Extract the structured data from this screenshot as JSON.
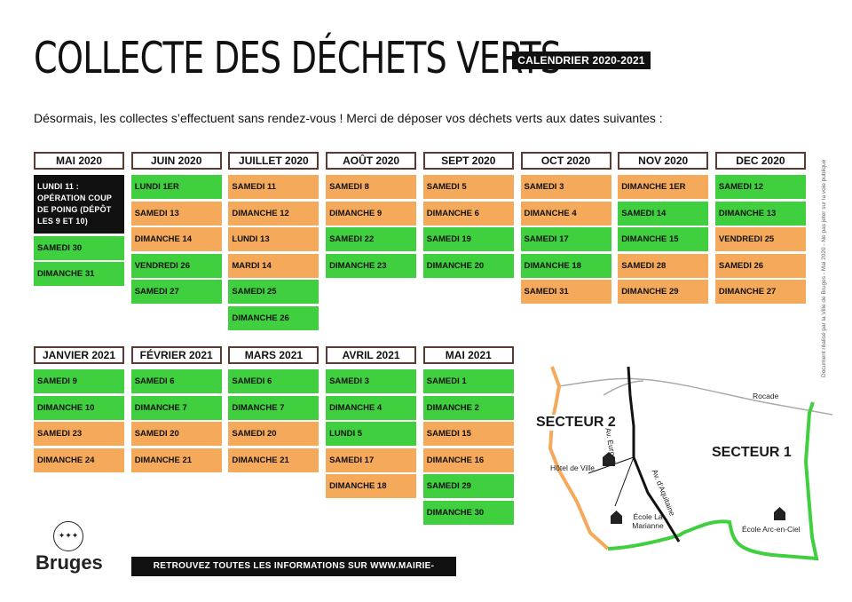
{
  "header": {
    "title": "COLLECTE DES DÉCHETS VERTS",
    "badge": "CALENDRIER 2020-2021",
    "intro": "Désormais, les collectes s’effectuent sans rendez-vous ! Merci de déposer vos déchets verts aux dates suivantes :"
  },
  "colors": {
    "green": "#3fcf3f",
    "orange": "#f5a95a",
    "black": "#111111",
    "border": "#5a3a32"
  },
  "months_2020": [
    {
      "name": "MAI 2020",
      "cells": [
        {
          "text": "LUNDI 11 : OPÉRATION COUP DE POING (DÉPÔT LES 9 ET 10)",
          "color": "black"
        },
        {
          "text": "SAMEDI 30",
          "color": "green"
        },
        {
          "text": "DIMANCHE 31",
          "color": "green"
        }
      ]
    },
    {
      "name": "JUIN 2020",
      "cells": [
        {
          "text": "LUNDI 1ER",
          "color": "green"
        },
        {
          "text": "SAMEDI 13",
          "color": "orange"
        },
        {
          "text": "DIMANCHE 14",
          "color": "orange"
        },
        {
          "text": "VENDREDI 26",
          "color": "green"
        },
        {
          "text": "SAMEDI 27",
          "color": "green"
        }
      ]
    },
    {
      "name": "JUILLET 2020",
      "cells": [
        {
          "text": "SAMEDI 11",
          "color": "orange"
        },
        {
          "text": "DIMANCHE 12",
          "color": "orange"
        },
        {
          "text": "LUNDI 13",
          "color": "orange"
        },
        {
          "text": "MARDI 14",
          "color": "orange"
        },
        {
          "text": "SAMEDI 25",
          "color": "green"
        },
        {
          "text": "DIMANCHE 26",
          "color": "green"
        }
      ]
    },
    {
      "name": "AOÛT 2020",
      "cells": [
        {
          "text": "SAMEDI 8",
          "color": "orange"
        },
        {
          "text": "DIMANCHE 9",
          "color": "orange"
        },
        {
          "text": "SAMEDI 22",
          "color": "green"
        },
        {
          "text": "DIMANCHE 23",
          "color": "green"
        }
      ]
    },
    {
      "name": "SEPT 2020",
      "cells": [
        {
          "text": "SAMEDI 5",
          "color": "orange"
        },
        {
          "text": "DIMANCHE 6",
          "color": "orange"
        },
        {
          "text": "SAMEDI 19",
          "color": "green"
        },
        {
          "text": "DIMANCHE 20",
          "color": "green"
        }
      ]
    },
    {
      "name": "OCT 2020",
      "cells": [
        {
          "text": "SAMEDI 3",
          "color": "orange"
        },
        {
          "text": "DIMANCHE 4",
          "color": "orange"
        },
        {
          "text": "SAMEDI 17",
          "color": "green"
        },
        {
          "text": "DIMANCHE 18",
          "color": "green"
        },
        {
          "text": "SAMEDI 31",
          "color": "orange"
        }
      ]
    },
    {
      "name": "NOV 2020",
      "cells": [
        {
          "text": "DIMANCHE 1ER",
          "color": "orange"
        },
        {
          "text": "SAMEDI 14",
          "color": "green"
        },
        {
          "text": "DIMANCHE 15",
          "color": "green"
        },
        {
          "text": "SAMEDI 28",
          "color": "orange"
        },
        {
          "text": "DIMANCHE 29",
          "color": "orange"
        }
      ]
    },
    {
      "name": "DEC 2020",
      "cells": [
        {
          "text": "SAMEDI 12",
          "color": "green"
        },
        {
          "text": "DIMANCHE 13",
          "color": "green"
        },
        {
          "text": "VENDREDI 25",
          "color": "orange"
        },
        {
          "text": "SAMEDI 26",
          "color": "orange"
        },
        {
          "text": "DIMANCHE 27",
          "color": "orange"
        }
      ]
    }
  ],
  "months_2021": [
    {
      "name": "JANVIER 2021",
      "cells": [
        {
          "text": "SAMEDI 9",
          "color": "green"
        },
        {
          "text": "DIMANCHE 10",
          "color": "green"
        },
        {
          "text": "SAMEDI 23",
          "color": "orange"
        },
        {
          "text": "DIMANCHE 24",
          "color": "orange"
        }
      ]
    },
    {
      "name": "FÉVRIER 2021",
      "cells": [
        {
          "text": "SAMEDI 6",
          "color": "green"
        },
        {
          "text": "DIMANCHE 7",
          "color": "green"
        },
        {
          "text": "SAMEDI 20",
          "color": "orange"
        },
        {
          "text": "DIMANCHE 21",
          "color": "orange"
        }
      ]
    },
    {
      "name": "MARS 2021",
      "cells": [
        {
          "text": "SAMEDI 6",
          "color": "green"
        },
        {
          "text": "DIMANCHE 7",
          "color": "green"
        },
        {
          "text": "SAMEDI 20",
          "color": "orange"
        },
        {
          "text": "DIMANCHE 21",
          "color": "orange"
        }
      ]
    },
    {
      "name": "AVRIL 2021",
      "cells": [
        {
          "text": "SAMEDI 3",
          "color": "green"
        },
        {
          "text": "DIMANCHE 4",
          "color": "green"
        },
        {
          "text": "LUNDI 5",
          "color": "green"
        },
        {
          "text": "SAMEDI 17",
          "color": "orange"
        },
        {
          "text": "DIMANCHE 18",
          "color": "orange"
        }
      ]
    },
    {
      "name": "MAI 2021",
      "cells": [
        {
          "text": "SAMEDI 1",
          "color": "green"
        },
        {
          "text": "DIMANCHE 2",
          "color": "green"
        },
        {
          "text": "SAMEDI 15",
          "color": "orange"
        },
        {
          "text": "DIMANCHE 16",
          "color": "orange"
        },
        {
          "text": "SAMEDI 29",
          "color": "green"
        },
        {
          "text": "DIMANCHE 30",
          "color": "green"
        }
      ]
    }
  ],
  "map": {
    "secteur1": "SECTEUR 1",
    "secteur2": "SECTEUR 2",
    "rocade": "Rocade",
    "av_europe": "Av. Europe",
    "av_aquitaine": "Av. d'Aquitaine",
    "hotel_de_ville": "Hôtel de Ville",
    "ecole_marianne": "École La Marianne",
    "ecole_arc": "École Arc-en-Ciel"
  },
  "vertical_note": "Document réalisé par la Ville de Bruges - Mai 2020 - Ne pas jeter sur la voie publique",
  "logo": {
    "name": "Bruges",
    "emblem_icon": "bruges-emblem-icon"
  },
  "footer": "RETROUVEZ TOUTES LES INFORMATIONS SUR WWW.MAIRIE-BRUGES.FR"
}
